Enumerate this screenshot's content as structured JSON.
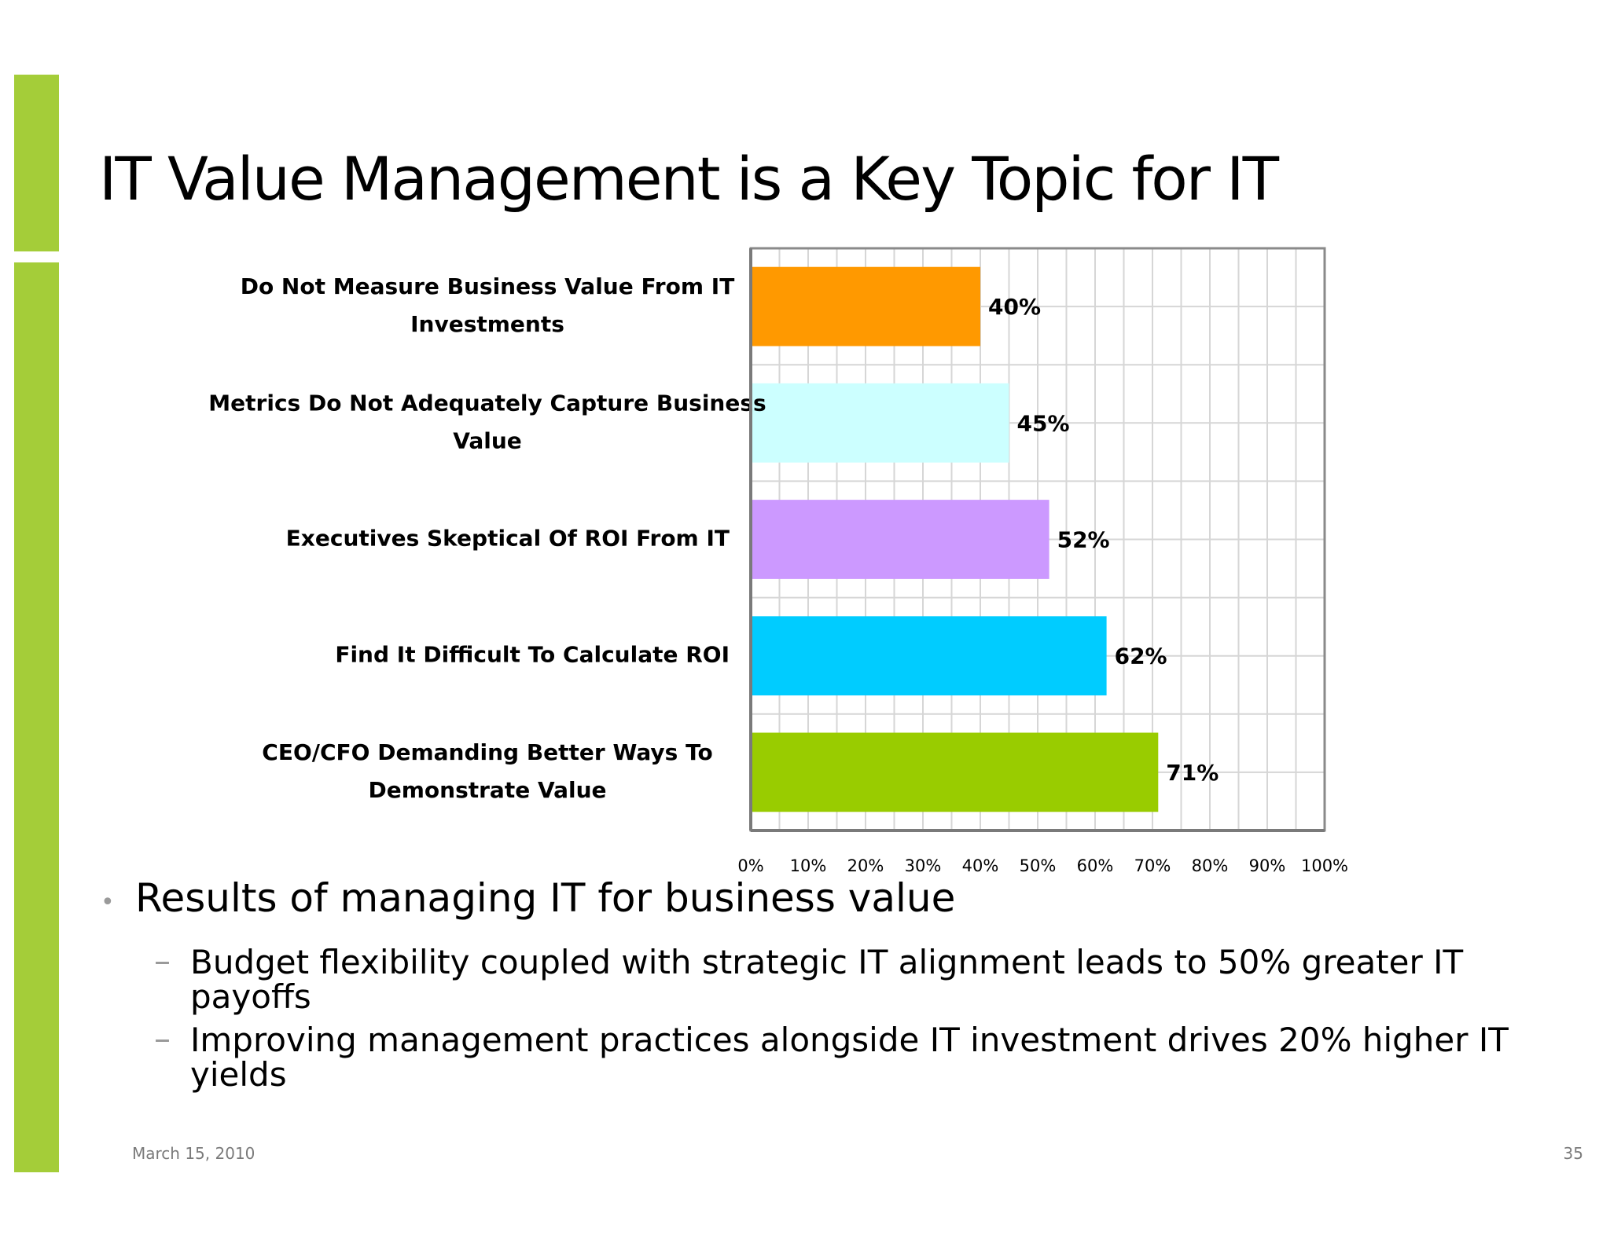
{
  "slide": {
    "title": "IT Value Management is a Key Topic for IT",
    "date": "March 15, 2010",
    "page_number": "35",
    "accent_color": "#a4cd39"
  },
  "chart_data": {
    "type": "bar",
    "orientation": "horizontal",
    "categories": [
      [
        "Do Not Measure Business Value From IT",
        "Investments"
      ],
      [
        "Metrics Do Not Adequately Capture Business",
        "Value"
      ],
      [
        "Executives Skeptical Of ROI From IT"
      ],
      [
        "Find It Difficult To Calculate ROI"
      ],
      [
        "CEO/CFO Demanding Better Ways To",
        "Demonstrate Value"
      ]
    ],
    "values": [
      40,
      45,
      52,
      62,
      71
    ],
    "value_labels": [
      "40%",
      "45%",
      "52%",
      "62%",
      "71%"
    ],
    "colors": [
      "#ff9900",
      "#ccffff",
      "#cc99ff",
      "#00ccff",
      "#99cc00"
    ],
    "xlim": [
      0,
      100
    ],
    "x_ticks": [
      "0%",
      "10%",
      "20%",
      "30%",
      "40%",
      "50%",
      "60%",
      "70%",
      "80%",
      "90%",
      "100%"
    ],
    "grid": true
  },
  "bullets": {
    "main": "Results of managing IT for business value",
    "subs": [
      [
        "Budget flexibility coupled with strategic IT alignment leads to 50% greater IT",
        "payoffs"
      ],
      [
        "Improving management practices alongside IT investment drives 20% higher IT",
        "yields"
      ]
    ]
  }
}
